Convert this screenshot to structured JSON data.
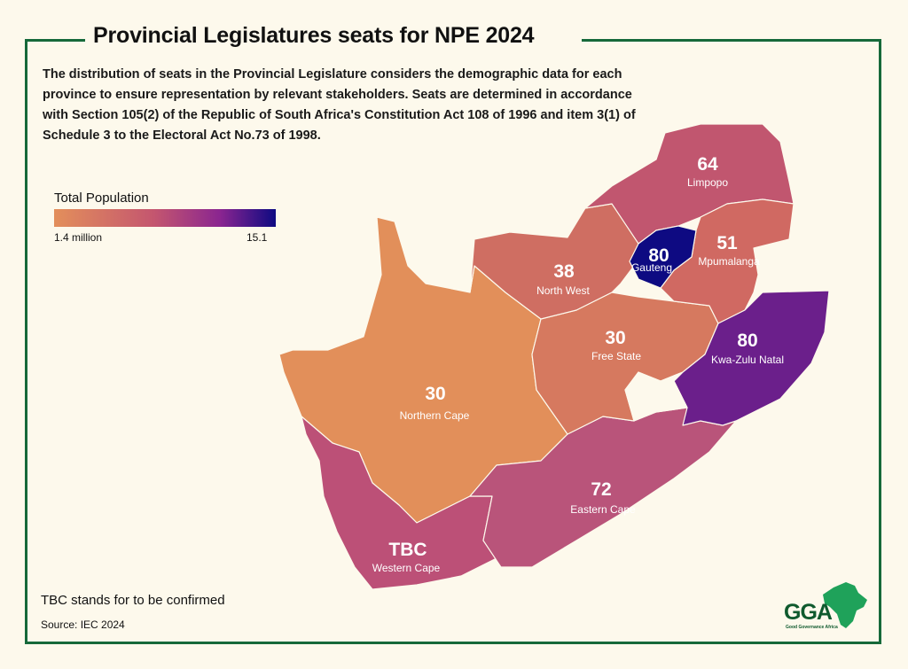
{
  "title": "Provincial Legislatures seats for NPE 2024",
  "description": "The distribution of seats in the Provincial Legislature considers the demographic data for each province to ensure representation by relevant stakeholders. Seats are determined in accordance with Section 105(2) of the Republic of South Africa's Constitution Act 108 of 1996 and item 3(1) of Schedule 3 to the Electoral Act No.73 of 1998.",
  "legend": {
    "title": "Total Population",
    "min_label": "1.4 million",
    "max_label": "15.1",
    "color_low": "#e38f5b",
    "color_high": "#0e0a82"
  },
  "provinces": [
    {
      "name": "Limpopo",
      "seats": "64",
      "color": "#c1566f"
    },
    {
      "name": "Mpumalanga",
      "seats": "51",
      "color": "#d06962"
    },
    {
      "name": "Gauteng",
      "seats": "80",
      "color": "#0e0a82"
    },
    {
      "name": "North West",
      "seats": "38",
      "color": "#cf6e62"
    },
    {
      "name": "Free State",
      "seats": "30",
      "color": "#d6795f"
    },
    {
      "name": "Kwa-Zulu Natal",
      "seats": "80",
      "color": "#6b1f8b"
    },
    {
      "name": "Northern Cape",
      "seats": "30",
      "color": "#e28f5a"
    },
    {
      "name": "Eastern Cape",
      "seats": "72",
      "color": "#b9547a"
    },
    {
      "name": "Western Cape",
      "seats": "TBC",
      "color": "#bc5077"
    }
  ],
  "note": "TBC stands for to be confirmed",
  "source": "Source: IEC 2024",
  "logo": {
    "text": "GGA",
    "subtitle": "Good Governance Africa",
    "color": "#0f5a2e",
    "accent": "#1fa25a"
  },
  "frame_color": "#16693a"
}
